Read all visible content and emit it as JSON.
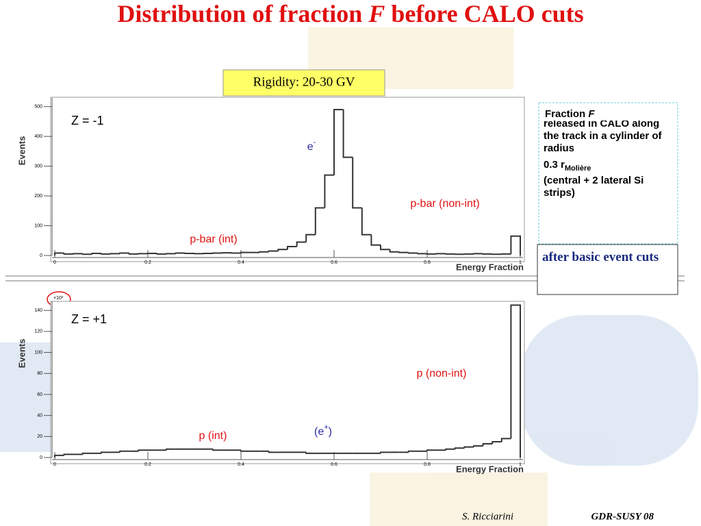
{
  "title_parts": [
    "Distribution of fraction ",
    "F",
    " before CALO cuts"
  ],
  "rigidity": "Rigidity: 20-30 GV",
  "note_parts": [
    "Fraction ",
    "F",
    " of energy released in CALO along the track in a cylinder of radius",
    "0.3 r",
    "Molière",
    "(central + 2 lateral Si strips)"
  ],
  "cuts_note": "after basic event cuts",
  "footer": {
    "author": "S. Ricciarini",
    "event": "GDR-SUSY 08"
  },
  "chart_data": [
    {
      "type": "histogram",
      "x_label": "Energy Fraction",
      "y_label": "Events",
      "color": "#333333",
      "bins": [
        0,
        0.02,
        0.04,
        0.06,
        0.08,
        0.1,
        0.12,
        0.14,
        0.16,
        0.18,
        0.2,
        0.22,
        0.24,
        0.26,
        0.28,
        0.3,
        0.32,
        0.34,
        0.36,
        0.38,
        0.4,
        0.42,
        0.44,
        0.46,
        0.48,
        0.5,
        0.52,
        0.54,
        0.56,
        0.58,
        0.6,
        0.62,
        0.64,
        0.66,
        0.68,
        0.7,
        0.72,
        0.74,
        0.76,
        0.78,
        0.8,
        0.82,
        0.84,
        0.86,
        0.88,
        0.9,
        0.92,
        0.94,
        0.96,
        0.98,
        1
      ],
      "values": [
        8,
        5,
        6,
        4,
        7,
        5,
        6,
        8,
        5,
        6,
        7,
        5,
        6,
        8,
        7,
        6,
        7,
        8,
        9,
        8,
        10,
        10,
        12,
        15,
        20,
        30,
        45,
        70,
        160,
        270,
        490,
        330,
        160,
        70,
        35,
        20,
        12,
        10,
        8,
        6,
        5,
        6,
        5,
        4,
        5,
        6,
        5,
        4,
        5,
        65
      ],
      "xlim": [
        0,
        1
      ],
      "ylim": [
        0,
        520
      ],
      "xticks": [
        0,
        0.2,
        0.4,
        0.6,
        0.8,
        1
      ],
      "yticks": [
        0,
        100,
        200,
        300,
        400,
        500
      ],
      "annotations": [
        {
          "text": "Z = -1",
          "color": "#000000"
        },
        {
          "text": "e",
          "sup": "-",
          "color": "#2a2aa0"
        },
        {
          "text": "p-bar (non-int)",
          "color": "#e01010"
        },
        {
          "text": "p-bar (int)",
          "color": "#e01010"
        }
      ]
    },
    {
      "type": "histogram",
      "x_label": "Energy Fraction",
      "y_label": "Events",
      "y_multiplier": "×10³",
      "color": "#333333",
      "bins": [
        0,
        0.02,
        0.04,
        0.06,
        0.08,
        0.1,
        0.12,
        0.14,
        0.16,
        0.18,
        0.2,
        0.22,
        0.24,
        0.26,
        0.28,
        0.3,
        0.32,
        0.34,
        0.36,
        0.38,
        0.4,
        0.42,
        0.44,
        0.46,
        0.48,
        0.5,
        0.52,
        0.54,
        0.56,
        0.58,
        0.6,
        0.62,
        0.64,
        0.66,
        0.68,
        0.7,
        0.72,
        0.74,
        0.76,
        0.78,
        0.8,
        0.82,
        0.84,
        0.86,
        0.88,
        0.9,
        0.92,
        0.94,
        0.96,
        0.98,
        1
      ],
      "values": [
        2,
        3,
        3,
        4,
        4,
        5,
        5,
        6,
        6,
        7,
        7,
        7,
        8,
        8,
        8,
        8,
        8,
        7,
        7,
        7,
        6,
        6,
        6,
        5,
        5,
        5,
        5,
        4,
        4,
        4,
        4,
        4,
        4,
        4,
        4,
        5,
        5,
        5,
        6,
        6,
        7,
        7,
        8,
        9,
        10,
        11,
        13,
        15,
        18,
        145
      ],
      "xlim": [
        0,
        1
      ],
      "ylim": [
        0,
        146
      ],
      "xticks": [
        0,
        0.2,
        0.4,
        0.6,
        0.8,
        1
      ],
      "yticks": [
        0,
        20,
        40,
        60,
        80,
        100,
        120,
        140
      ],
      "annotations": [
        {
          "text": "Z = +1",
          "color": "#000000"
        },
        {
          "text": "p (non-int)",
          "color": "#e01010"
        },
        {
          "text": "p (int)",
          "color": "#e01010"
        },
        {
          "text": "(e",
          "sup": "+",
          "after": ")",
          "color": "#2a2aa0"
        }
      ]
    }
  ]
}
